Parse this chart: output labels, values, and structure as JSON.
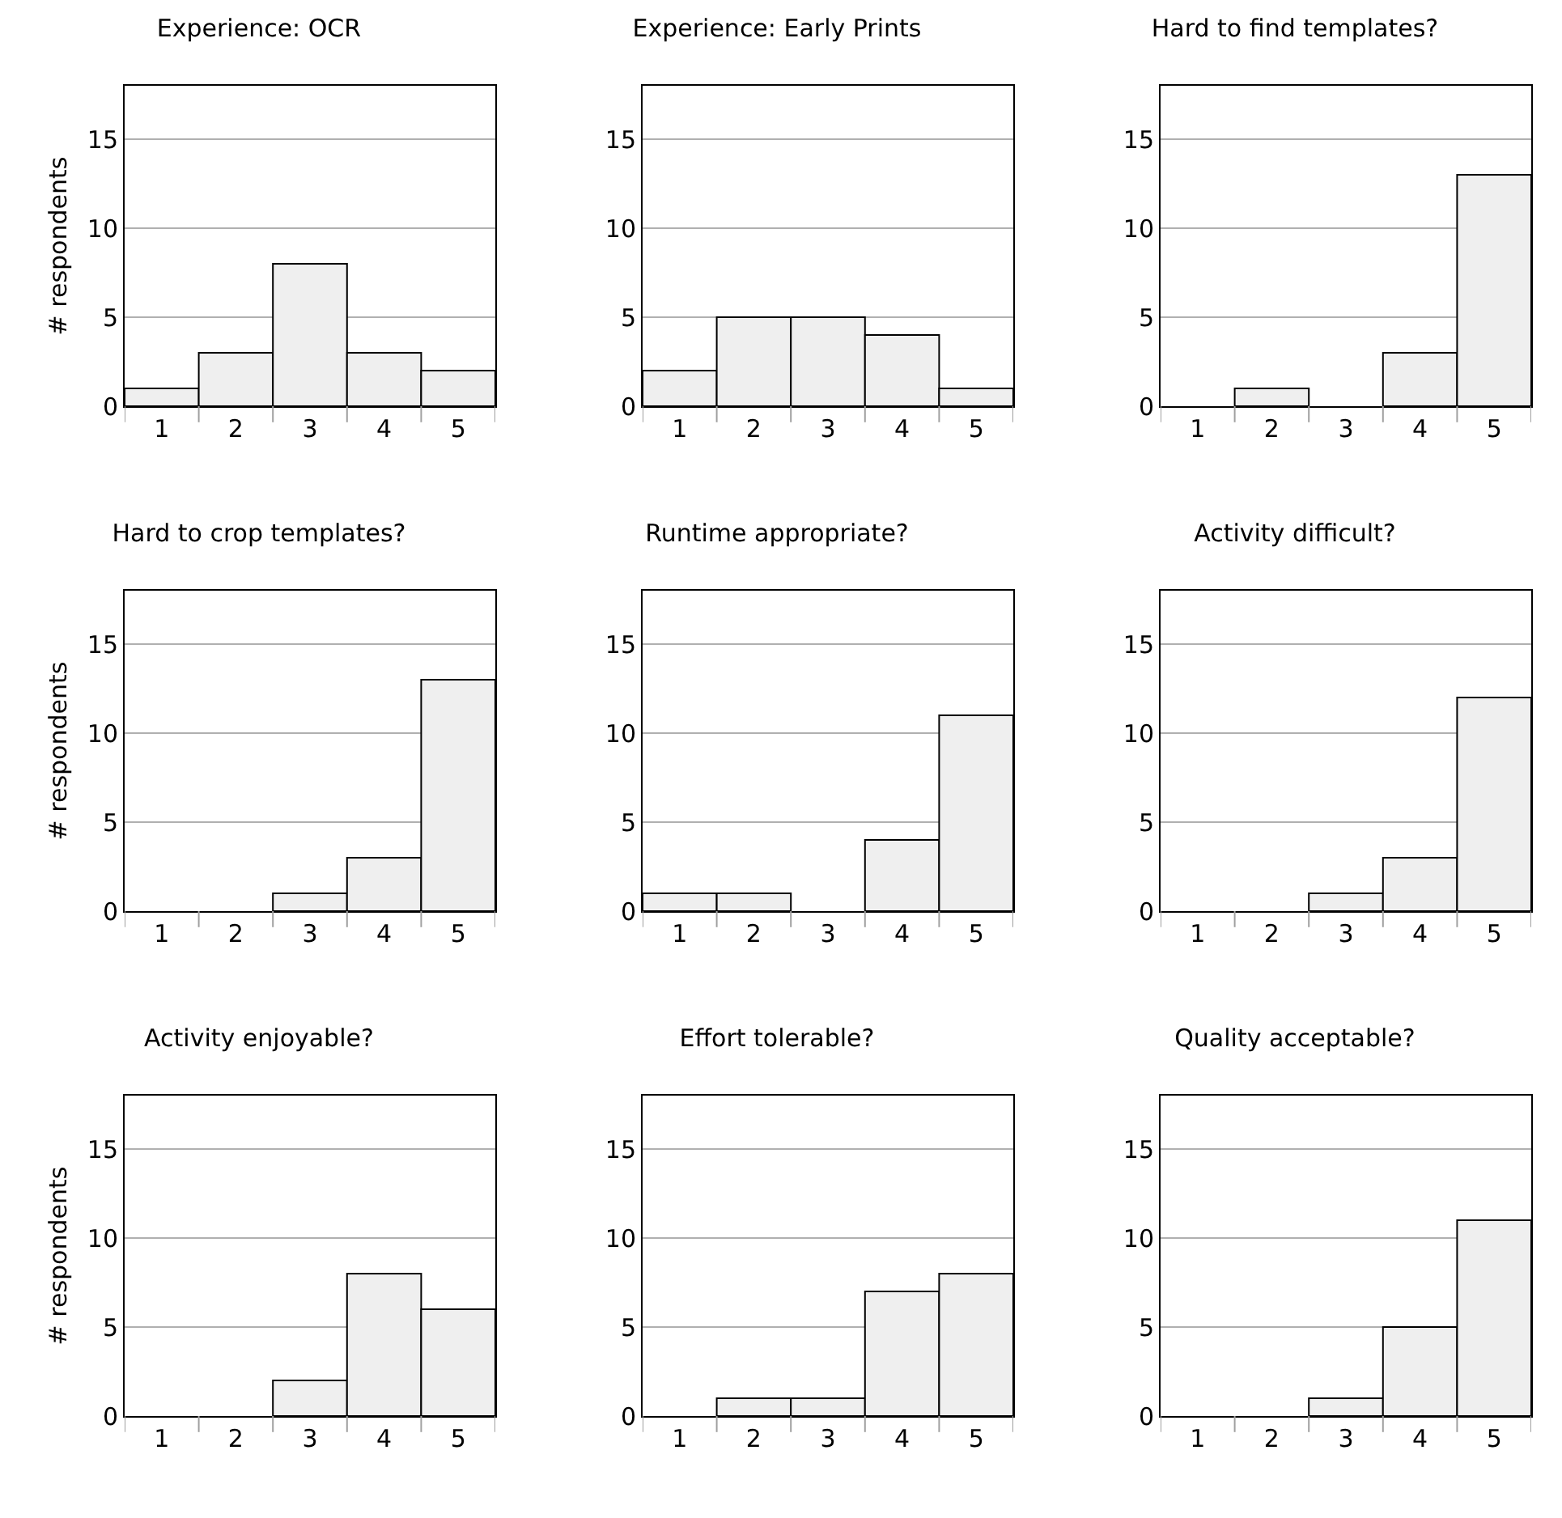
{
  "chart_data": [
    {
      "type": "bar",
      "title": "Experience: OCR",
      "ylabel": "# respondents",
      "categories": [
        "1",
        "2",
        "3",
        "4",
        "5"
      ],
      "values": [
        1,
        3,
        8,
        3,
        2
      ],
      "color": "#efefef",
      "ylim": [
        0,
        18
      ],
      "yticks": [
        0,
        5,
        10,
        15
      ],
      "grid": "y"
    },
    {
      "type": "bar",
      "title": "Experience: Early Prints",
      "categories": [
        "1",
        "2",
        "3",
        "4",
        "5"
      ],
      "values": [
        2,
        5,
        5,
        4,
        1
      ],
      "color": "#efefef",
      "ylim": [
        0,
        18
      ],
      "yticks": [
        0,
        5,
        10,
        15
      ],
      "grid": "y"
    },
    {
      "type": "bar",
      "title": "Hard to find templates?",
      "categories": [
        "1",
        "2",
        "3",
        "4",
        "5"
      ],
      "values": [
        0,
        1,
        0,
        3,
        13
      ],
      "color": "#efefef",
      "ylim": [
        0,
        18
      ],
      "yticks": [
        0,
        5,
        10,
        15
      ],
      "grid": "y"
    },
    {
      "type": "bar",
      "title": "Hard to crop templates?",
      "ylabel": "# respondents",
      "categories": [
        "1",
        "2",
        "3",
        "4",
        "5"
      ],
      "values": [
        0,
        0,
        1,
        3,
        13
      ],
      "color": "#efefef",
      "ylim": [
        0,
        18
      ],
      "yticks": [
        0,
        5,
        10,
        15
      ],
      "grid": "y"
    },
    {
      "type": "bar",
      "title": "Runtime appropriate?",
      "categories": [
        "1",
        "2",
        "3",
        "4",
        "5"
      ],
      "values": [
        1,
        1,
        0,
        4,
        11
      ],
      "color": "#efefef",
      "ylim": [
        0,
        18
      ],
      "yticks": [
        0,
        5,
        10,
        15
      ],
      "grid": "y"
    },
    {
      "type": "bar",
      "title": "Activity difficult?",
      "categories": [
        "1",
        "2",
        "3",
        "4",
        "5"
      ],
      "values": [
        0,
        0,
        1,
        3,
        12
      ],
      "color": "#efefef",
      "ylim": [
        0,
        18
      ],
      "yticks": [
        0,
        5,
        10,
        15
      ],
      "grid": "y"
    },
    {
      "type": "bar",
      "title": "Activity enjoyable?",
      "ylabel": "# respondents",
      "categories": [
        "1",
        "2",
        "3",
        "4",
        "5"
      ],
      "values": [
        0,
        0,
        2,
        8,
        6
      ],
      "color": "#efefef",
      "ylim": [
        0,
        18
      ],
      "yticks": [
        0,
        5,
        10,
        15
      ],
      "grid": "y"
    },
    {
      "type": "bar",
      "title": "Effort tolerable?",
      "categories": [
        "1",
        "2",
        "3",
        "4",
        "5"
      ],
      "values": [
        0,
        1,
        1,
        7,
        8
      ],
      "color": "#efefef",
      "ylim": [
        0,
        18
      ],
      "yticks": [
        0,
        5,
        10,
        15
      ],
      "grid": "y"
    },
    {
      "type": "bar",
      "title": "Quality acceptable?",
      "categories": [
        "1",
        "2",
        "3",
        "4",
        "5"
      ],
      "values": [
        0,
        0,
        1,
        5,
        11
      ],
      "color": "#efefef",
      "ylim": [
        0,
        18
      ],
      "yticks": [
        0,
        5,
        10,
        15
      ],
      "grid": "y"
    }
  ]
}
